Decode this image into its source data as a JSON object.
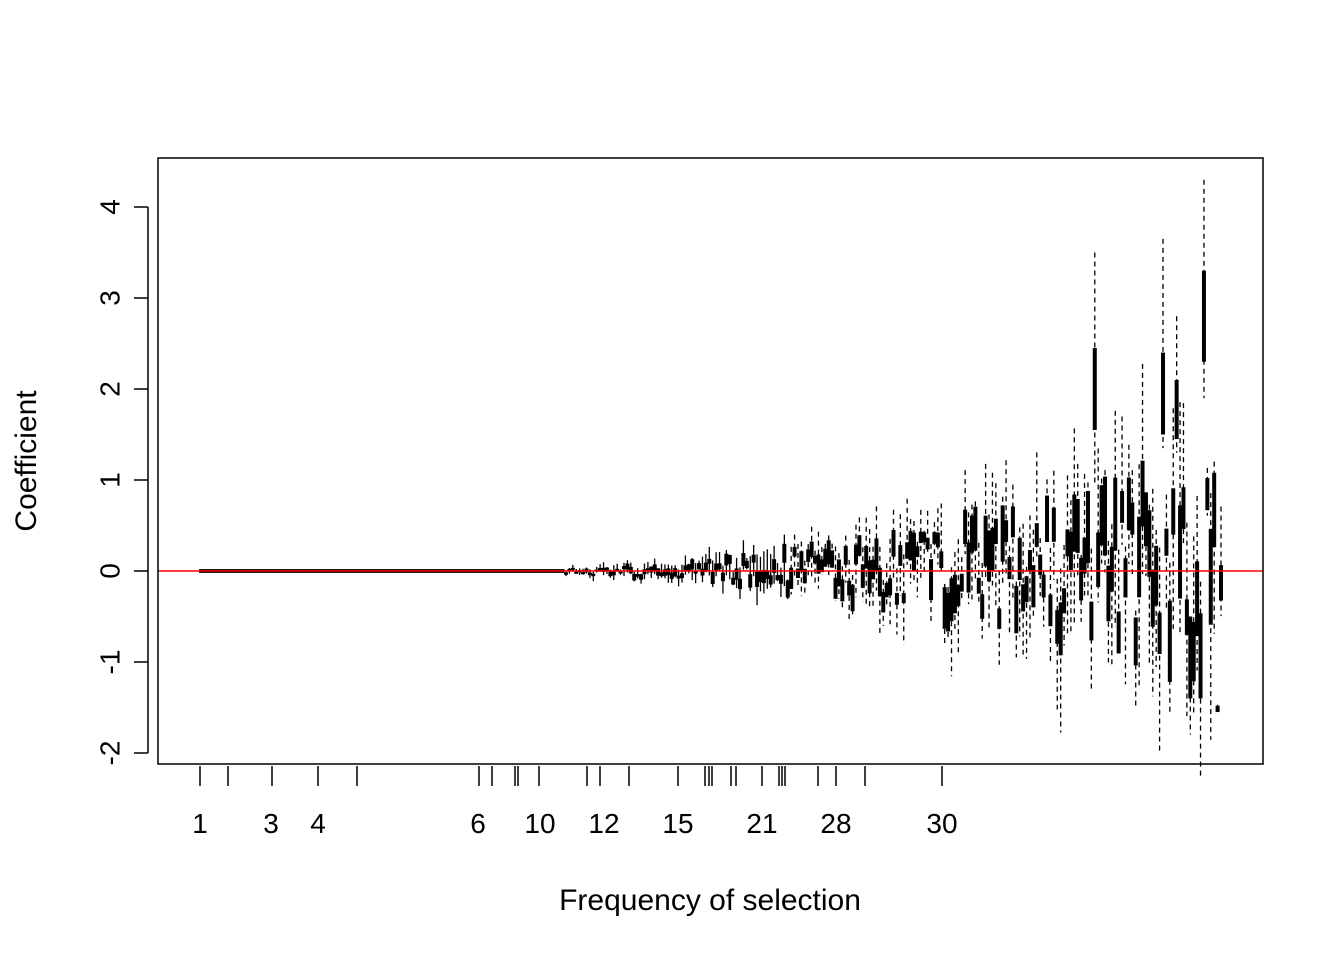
{
  "chart_data": {
    "type": "boxplot",
    "xlabel": "Frequency of selection",
    "ylabel": "Coefficient",
    "ylim": [
      -2.2,
      4.5
    ],
    "y_ticks": [
      "-2",
      "-1",
      "0",
      "1",
      "2",
      "3",
      "4"
    ],
    "x_tick_labels": [
      "1",
      "3",
      "4",
      "6",
      "10",
      "12",
      "15",
      "21",
      "28",
      "30"
    ],
    "reference_line": {
      "y": 0,
      "color": "#ff0000"
    },
    "grid": false,
    "box_count": 300,
    "notable_boxes": [
      {
        "region": "frequency ~31",
        "median": 2.0,
        "whisker_high": 3.5
      },
      {
        "region": "after 30",
        "median": -1.0,
        "whisker_low": -1.8
      },
      {
        "region": "near right edge",
        "median": 3.1,
        "whisker_high": 4.3
      },
      {
        "region": "near right edge",
        "median": 2.0,
        "whisker_high": 3.65
      },
      {
        "region": "near right edge",
        "median": -1.52
      }
    ]
  }
}
